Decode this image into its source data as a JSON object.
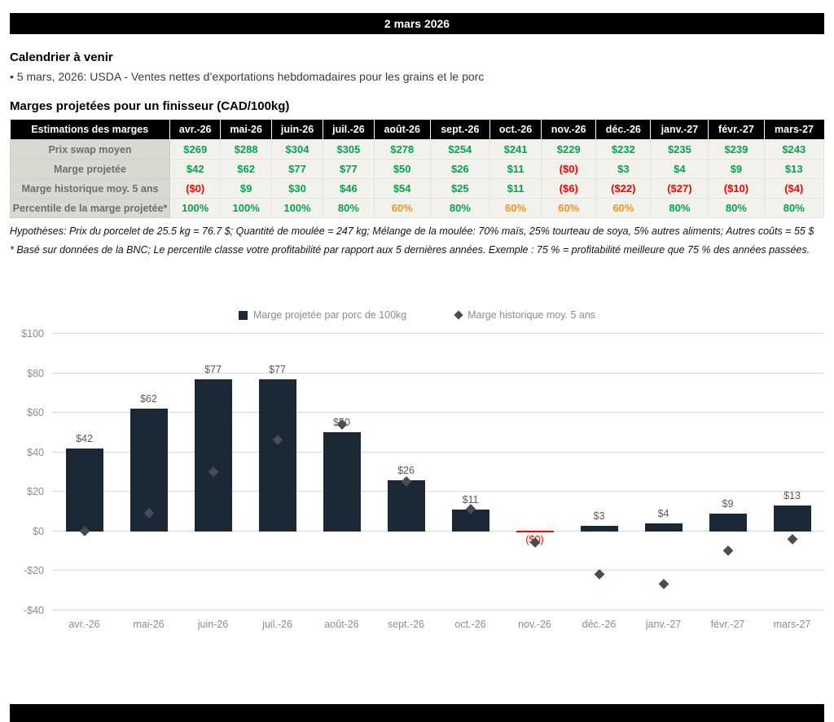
{
  "banner": {
    "date": "2 mars 2026"
  },
  "calendar": {
    "title": "Calendrier à venir",
    "items": [
      "• 5 mars, 2026: USDA - Ventes nettes d’exportations hebdomadaires pour les grains et le porc"
    ]
  },
  "margins": {
    "title": "Marges projetées pour un finisseur (CAD/100kg)",
    "table": {
      "header": [
        "Estimations des marges",
        "avr.-26",
        "mai-26",
        "juin-26",
        "juil.-26",
        "août-26",
        "sept.-26",
        "oct.-26",
        "nov.-26",
        "déc.-26",
        "janv.-27",
        "févr.-27",
        "mars-27"
      ],
      "warn_value": "60%",
      "rows": [
        {
          "label": "Prix swap moyen",
          "values": [
            "$269",
            "$288",
            "$304",
            "$305",
            "$278",
            "$254",
            "$241",
            "$229",
            "$232",
            "$235",
            "$239",
            "$243"
          ]
        },
        {
          "label": "Marge projetée",
          "values": [
            "$42",
            "$62",
            "$77",
            "$77",
            "$50",
            "$26",
            "$11",
            "($0)",
            "$3",
            "$4",
            "$9",
            "$13"
          ]
        },
        {
          "label": "Marge historique moy. 5 ans",
          "values": [
            "($0)",
            "$9",
            "$30",
            "$46",
            "$54",
            "$25",
            "$11",
            "($6)",
            "($22)",
            "($27)",
            "($10)",
            "($4)"
          ]
        },
        {
          "label": "Percentile de la marge projetée*",
          "values": [
            "100%",
            "100%",
            "100%",
            "80%",
            "60%",
            "80%",
            "60%",
            "60%",
            "60%",
            "80%",
            "80%",
            "80%"
          ]
        }
      ]
    },
    "notes": [
      "Hypothèses: Prix du porcelet de 25.5 kg = 76.7 $; Quantité de moulée = 247 kg; Mélange de la moulée: 70% maïs, 25% tourteau de soya, 5% autres aliments; Autres coûts = 55 $",
      "* Basé sur données de la BNC; Le percentile classe votre profitabilité par rapport aux 5 dernières années. Exemple : 75 % = profitabilité meilleure que 75 % des années passées."
    ]
  },
  "chart_data": {
    "type": "bar",
    "categories": [
      "avr.-26",
      "mai-26",
      "juin-26",
      "juil.-26",
      "août-26",
      "sept.-26",
      "oct.-26",
      "nov.-26",
      "déc.-26",
      "janv.-27",
      "févr.-27",
      "mars-27"
    ],
    "series": [
      {
        "name": "Marge projetée par porc de 100kg",
        "type": "bar",
        "values": [
          42,
          62,
          77,
          77,
          50,
          26,
          11,
          0,
          3,
          4,
          9,
          13
        ],
        "labels": [
          "$42",
          "$62",
          "$77",
          "$77",
          "$50",
          "$26",
          "$11",
          "($0)",
          "$3",
          "$4",
          "$9",
          "$13"
        ]
      },
      {
        "name": "Marge historique moy. 5 ans",
        "type": "scatter",
        "values": [
          0,
          9,
          30,
          46,
          54,
          25,
          11,
          -6,
          -22,
          -27,
          -10,
          -4
        ]
      }
    ],
    "ylim": [
      -40,
      100
    ],
    "yticks": [
      {
        "v": -40,
        "label": "-$40"
      },
      {
        "v": -20,
        "label": "-$20"
      },
      {
        "v": 0,
        "label": "$0"
      },
      {
        "v": 20,
        "label": "$20"
      },
      {
        "v": 40,
        "label": "$40"
      },
      {
        "v": 60,
        "label": "$60"
      },
      {
        "v": 80,
        "label": "$80"
      },
      {
        "v": 100,
        "label": "$100"
      }
    ],
    "grid": true,
    "legend_position": "top"
  },
  "colors": {
    "green": "#00A651",
    "red": "#FF0000",
    "orange": "#F7941D",
    "bar": "#1B2936",
    "marker": "#474C55",
    "grid": "#D9D9D9",
    "axis_text": "#8C8C8C",
    "banner_bg": "#000000"
  }
}
